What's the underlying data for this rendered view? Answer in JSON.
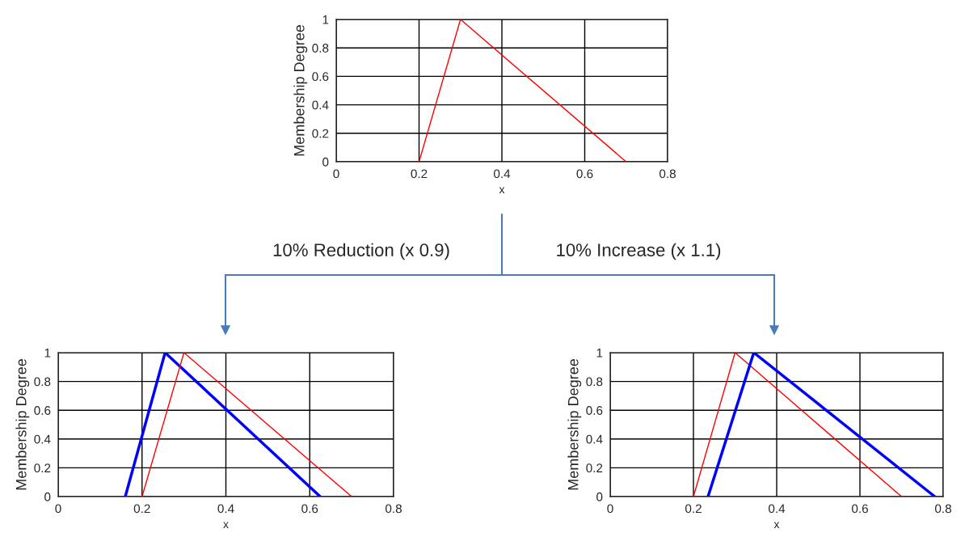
{
  "chart_data": [
    {
      "type": "line",
      "xlabel": "x",
      "ylabel": "Membership Degree",
      "xlim": [
        0,
        0.8
      ],
      "ylim": [
        0,
        1
      ],
      "xticks": [
        0,
        0.2,
        0.4,
        0.6,
        0.8
      ],
      "yticks": [
        0,
        0.2,
        0.4,
        0.6,
        0.8,
        1
      ],
      "grid": true,
      "legend": false,
      "series": [
        {
          "color": "#ff0000",
          "x": [
            0.2,
            0.3,
            0.7
          ],
          "values": [
            0,
            1,
            0
          ]
        }
      ]
    },
    {
      "type": "line",
      "xlabel": "x",
      "ylabel": "Membership Degree",
      "xlim": [
        0,
        0.8
      ],
      "ylim": [
        0,
        1
      ],
      "xticks": [
        0,
        0.2,
        0.4,
        0.6,
        0.8
      ],
      "yticks": [
        0,
        0.2,
        0.4,
        0.6,
        0.8,
        1
      ],
      "grid": true,
      "legend": false,
      "annotations": [
        "10% Reduction (x 0.9)"
      ],
      "series": [
        {
          "color": "#0000ff",
          "x": [
            0.16,
            0.255,
            0.625
          ],
          "values": [
            0,
            1,
            0
          ]
        },
        {
          "color": "#ff0000",
          "x": [
            0.2,
            0.3,
            0.7
          ],
          "values": [
            0,
            1,
            0
          ]
        }
      ]
    },
    {
      "type": "line",
      "xlabel": "x",
      "ylabel": "Membership Degree",
      "xlim": [
        0,
        0.8
      ],
      "ylim": [
        0,
        1
      ],
      "xticks": [
        0,
        0.2,
        0.4,
        0.6,
        0.8
      ],
      "yticks": [
        0,
        0.2,
        0.4,
        0.6,
        0.8,
        1
      ],
      "grid": true,
      "legend": false,
      "annotations": [
        "10% Increase (x 1.1)"
      ],
      "series": [
        {
          "color": "#ff0000",
          "x": [
            0.2,
            0.3,
            0.7
          ],
          "values": [
            0,
            1,
            0
          ]
        },
        {
          "color": "#0000ff",
          "x": [
            0.235,
            0.345,
            0.78
          ],
          "values": [
            0,
            1,
            0
          ]
        }
      ]
    }
  ]
}
